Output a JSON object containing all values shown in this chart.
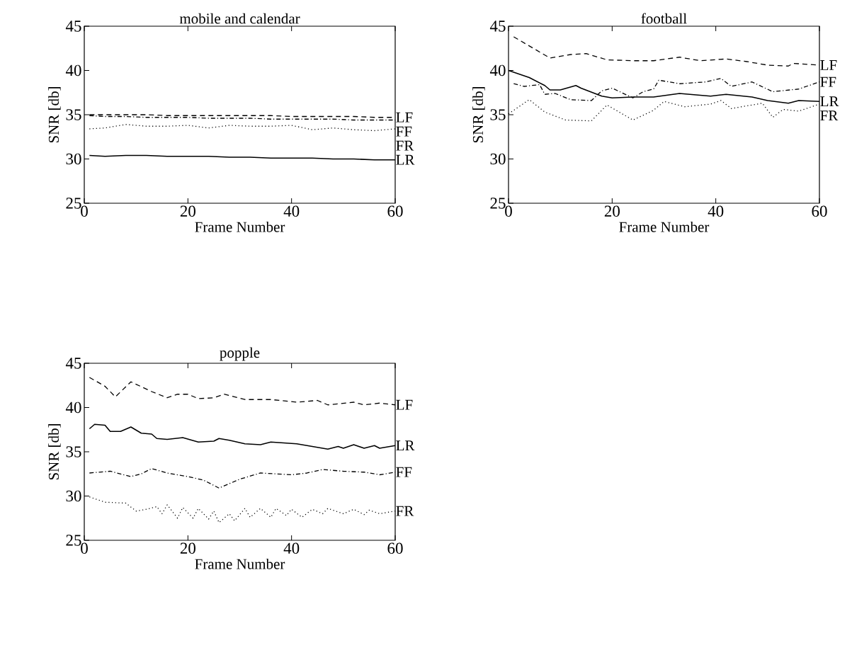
{
  "chart_data": [
    {
      "type": "line",
      "title": "mobile and calendar",
      "xlabel": "Frame Number",
      "ylabel": "SNR [db]",
      "xlim": [
        0,
        60
      ],
      "ylim": [
        25,
        45
      ],
      "xticks": [
        0,
        20,
        40,
        60
      ],
      "yticks": [
        25,
        30,
        35,
        40,
        45
      ],
      "grid": false,
      "legend": false,
      "x": [
        1,
        4,
        8,
        12,
        16,
        20,
        24,
        28,
        32,
        36,
        40,
        44,
        48,
        52,
        56,
        60
      ],
      "series": [
        {
          "name": "LF",
          "color": "#000000",
          "line_style": "dashed",
          "values": [
            35.0,
            35.0,
            35.0,
            35.0,
            34.9,
            34.9,
            34.9,
            34.9,
            34.9,
            34.9,
            34.8,
            34.8,
            34.8,
            34.8,
            34.7,
            34.7
          ]
        },
        {
          "name": "FF",
          "color": "#000000",
          "line_style": "dashdot",
          "values": [
            34.9,
            34.8,
            34.8,
            34.7,
            34.7,
            34.7,
            34.6,
            34.6,
            34.6,
            34.5,
            34.5,
            34.5,
            34.5,
            34.4,
            34.4,
            34.4
          ]
        },
        {
          "name": "FR",
          "color": "#000000",
          "line_style": "dotted",
          "values": [
            33.4,
            33.5,
            33.9,
            33.7,
            33.7,
            33.8,
            33.5,
            33.8,
            33.7,
            33.7,
            33.8,
            33.3,
            33.5,
            33.3,
            33.2,
            33.4
          ]
        },
        {
          "name": "LR",
          "color": "#000000",
          "line_style": "solid",
          "values": [
            30.4,
            30.3,
            30.4,
            30.4,
            30.3,
            30.3,
            30.3,
            30.2,
            30.2,
            30.1,
            30.1,
            30.1,
            30.0,
            30.0,
            29.9,
            29.9
          ]
        }
      ]
    },
    {
      "type": "line",
      "title": "football",
      "xlabel": "Frame Number",
      "ylabel": "SNR [db]",
      "xlim": [
        0,
        60
      ],
      "ylim": [
        25,
        45
      ],
      "xticks": [
        0,
        20,
        40,
        60
      ],
      "yticks": [
        25,
        30,
        35,
        40,
        45
      ],
      "grid": false,
      "legend": false,
      "series": [
        {
          "name": "LF",
          "color": "#000000",
          "line_style": "dashed",
          "x": [
            1,
            8,
            12,
            15,
            19,
            24,
            28,
            33,
            37,
            42,
            46,
            50,
            54,
            55,
            60
          ],
          "values": [
            43.8,
            41.4,
            41.8,
            41.9,
            41.2,
            41.1,
            41.1,
            41.5,
            41.1,
            41.3,
            41.0,
            40.6,
            40.5,
            40.8,
            40.6
          ]
        },
        {
          "name": "FF",
          "color": "#000000",
          "line_style": "dashdot",
          "x": [
            1,
            3,
            6,
            7,
            9,
            12,
            16,
            18,
            20,
            24,
            26,
            28,
            29,
            33,
            38,
            41,
            43,
            47,
            51,
            56,
            60
          ],
          "values": [
            38.5,
            38.2,
            38.4,
            37.3,
            37.4,
            36.7,
            36.6,
            37.7,
            38.0,
            36.9,
            37.6,
            37.9,
            38.9,
            38.5,
            38.7,
            39.1,
            38.2,
            38.7,
            37.6,
            37.9,
            38.7
          ]
        },
        {
          "name": "LR",
          "color": "#000000",
          "line_style": "solid",
          "x": [
            0,
            4,
            7,
            8,
            10,
            13,
            14,
            18,
            20,
            24,
            28,
            33,
            39,
            42,
            47,
            50,
            54,
            56,
            60
          ],
          "values": [
            40.0,
            39.2,
            38.3,
            37.8,
            37.8,
            38.3,
            38.0,
            37.1,
            36.9,
            37.0,
            37.0,
            37.4,
            37.1,
            37.3,
            37.0,
            36.6,
            36.3,
            36.6,
            36.5
          ]
        },
        {
          "name": "FR",
          "color": "#000000",
          "line_style": "dotted",
          "x": [
            0,
            4,
            7,
            11,
            16,
            19,
            24,
            28,
            30,
            34,
            39,
            41,
            43,
            49,
            51,
            53,
            56,
            60
          ],
          "values": [
            35.1,
            36.7,
            35.3,
            34.4,
            34.3,
            36.1,
            34.4,
            35.5,
            36.5,
            35.9,
            36.2,
            36.6,
            35.7,
            36.3,
            34.7,
            35.6,
            35.4,
            36.2
          ]
        }
      ]
    },
    {
      "type": "line",
      "title": "popple",
      "xlabel": "Frame Number",
      "ylabel": "SNR [db]",
      "xlim": [
        0,
        60
      ],
      "ylim": [
        25,
        45
      ],
      "xticks": [
        0,
        20,
        40,
        60
      ],
      "yticks": [
        25,
        30,
        35,
        40,
        45
      ],
      "grid": false,
      "legend": false,
      "series": [
        {
          "name": "LF",
          "color": "#000000",
          "line_style": "dashed",
          "x": [
            1,
            4,
            6,
            9,
            13,
            16,
            18,
            20,
            22,
            25,
            27,
            31,
            36,
            41,
            45,
            47,
            52,
            54,
            57,
            60
          ],
          "values": [
            43.4,
            42.4,
            41.2,
            42.9,
            41.8,
            41.1,
            41.5,
            41.5,
            41.0,
            41.1,
            41.5,
            40.9,
            40.9,
            40.6,
            40.8,
            40.3,
            40.6,
            40.3,
            40.5,
            40.3
          ]
        },
        {
          "name": "LR",
          "color": "#000000",
          "line_style": "solid",
          "x": [
            1,
            2,
            4,
            5,
            7,
            9,
            11,
            13,
            14,
            16,
            19,
            22,
            25,
            26,
            28,
            31,
            34,
            36,
            41,
            44,
            47,
            49,
            50,
            52,
            54,
            56,
            57,
            60
          ],
          "values": [
            37.6,
            38.1,
            38.0,
            37.3,
            37.3,
            37.8,
            37.1,
            37.0,
            36.5,
            36.4,
            36.6,
            36.1,
            36.2,
            36.5,
            36.3,
            35.9,
            35.8,
            36.1,
            35.9,
            35.6,
            35.3,
            35.6,
            35.4,
            35.8,
            35.4,
            35.7,
            35.4,
            35.7
          ]
        },
        {
          "name": "FF",
          "color": "#000000",
          "line_style": "dashdot",
          "x": [
            1,
            5,
            9,
            11,
            13,
            16,
            20,
            23,
            26,
            30,
            34,
            40,
            43,
            46,
            50,
            54,
            57,
            60
          ],
          "values": [
            32.6,
            32.8,
            32.2,
            32.5,
            33.1,
            32.6,
            32.2,
            31.8,
            30.9,
            31.9,
            32.6,
            32.4,
            32.6,
            33.0,
            32.8,
            32.7,
            32.4,
            32.7
          ]
        },
        {
          "name": "FR",
          "color": "#000000",
          "line_style": "dotted",
          "x": [
            1,
            4,
            8,
            10,
            12,
            14,
            15,
            16,
            18,
            19,
            21,
            22,
            24,
            25,
            26,
            28,
            29,
            31,
            32,
            34,
            36,
            37,
            39,
            40,
            42,
            44,
            46,
            47,
            50,
            52,
            54,
            55,
            57,
            60
          ],
          "values": [
            29.9,
            29.3,
            29.2,
            28.3,
            28.5,
            28.8,
            28.0,
            29.0,
            27.5,
            28.7,
            27.5,
            28.6,
            27.4,
            28.3,
            27.0,
            28.0,
            27.2,
            28.6,
            27.6,
            28.6,
            27.6,
            28.6,
            27.8,
            28.5,
            27.6,
            28.5,
            28.0,
            28.6,
            28.0,
            28.5,
            27.9,
            28.4,
            28.0,
            28.3
          ]
        }
      ]
    }
  ]
}
